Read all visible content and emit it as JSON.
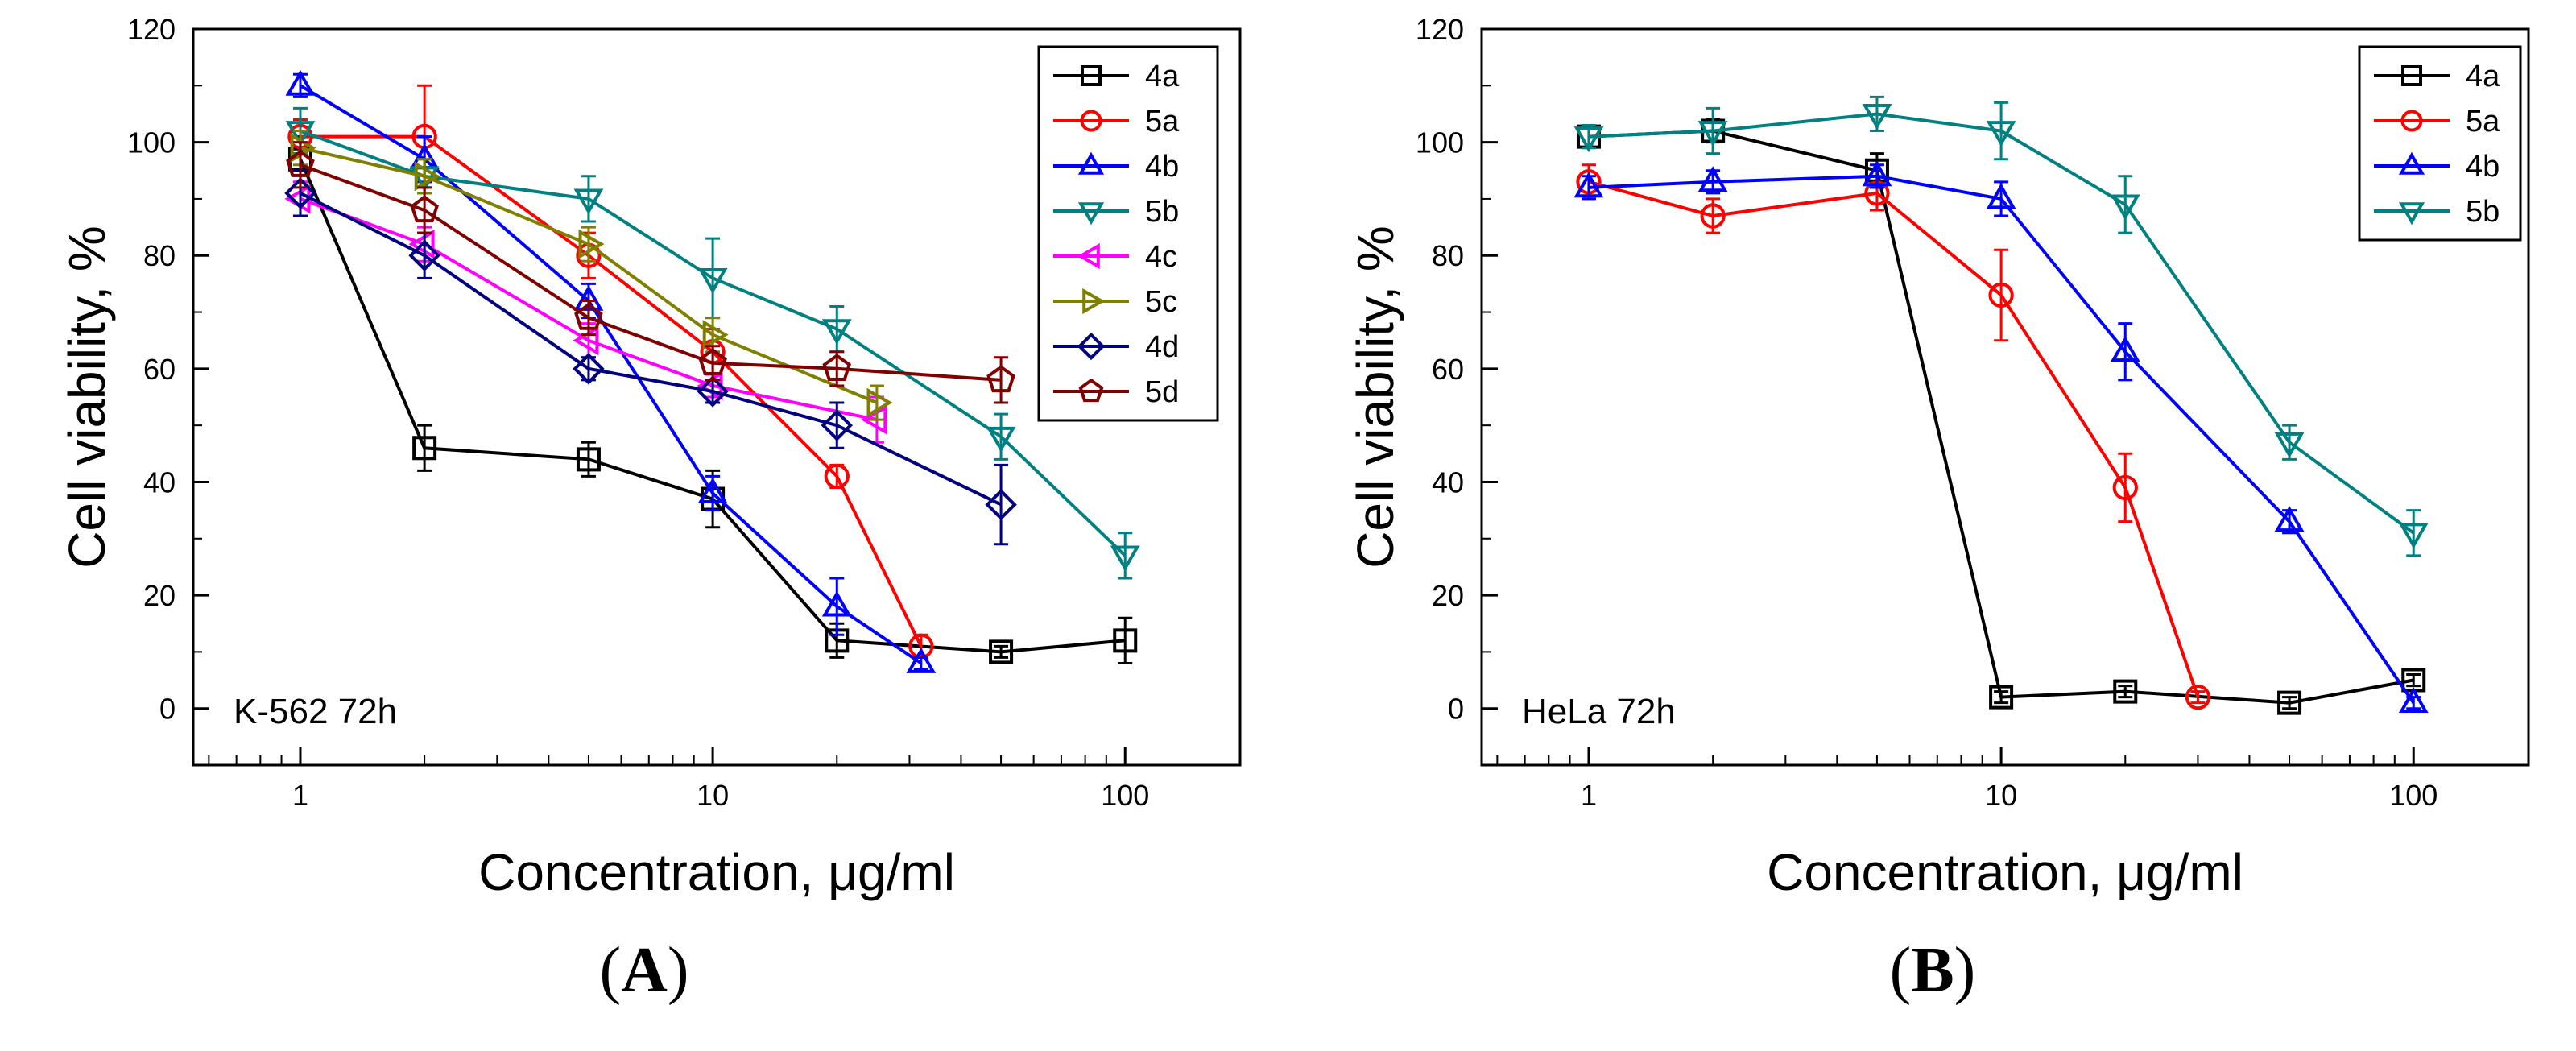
{
  "chart_data": [
    {
      "panel": "(A)",
      "panel_letter": "A",
      "type": "line",
      "xscale": "log",
      "xlim": [
        0.55,
        190
      ],
      "ylim": [
        -10,
        120
      ],
      "xticks": [
        1,
        10,
        100
      ],
      "yticks": [
        0,
        20,
        40,
        60,
        80,
        100,
        120
      ],
      "xlabel": "Concentration, μg/ml",
      "ylabel": "Cell viability, %",
      "annotation": "K-562 72h",
      "legend_position": "top-right",
      "series": [
        {
          "name": "4a",
          "color": "#000000",
          "marker": "square",
          "x": [
            1,
            2,
            5,
            10,
            20,
            50,
            100
          ],
          "y": [
            97,
            46,
            44,
            37,
            12,
            10,
            12
          ],
          "err": [
            4,
            4,
            3,
            5,
            3,
            1,
            4
          ]
        },
        {
          "name": "5a",
          "color": "#ff0000",
          "marker": "circle",
          "x": [
            1,
            2,
            5,
            10,
            20,
            32
          ],
          "y": [
            101,
            101,
            80,
            63,
            41,
            11
          ],
          "err": [
            3,
            9,
            4,
            4,
            2,
            2
          ]
        },
        {
          "name": "4b",
          "color": "#0000ff",
          "marker": "triangle-up",
          "x": [
            1,
            2,
            5,
            10,
            20,
            32
          ],
          "y": [
            110,
            97,
            72,
            38,
            18,
            8
          ],
          "err": [
            2,
            4,
            3,
            3,
            5,
            1
          ]
        },
        {
          "name": "5b",
          "color": "#008080",
          "marker": "triangle-down",
          "x": [
            1,
            2,
            5,
            10,
            20,
            50,
            100
          ],
          "y": [
            102,
            94,
            90,
            76,
            67,
            48,
            27
          ],
          "err": [
            4,
            3,
            4,
            7,
            4,
            4,
            4
          ]
        },
        {
          "name": "4c",
          "color": "#ff00ff",
          "marker": "triangle-left",
          "x": [
            1,
            2,
            5,
            10,
            25
          ],
          "y": [
            90,
            82,
            65,
            57,
            51
          ],
          "err": [
            3,
            3,
            3,
            2,
            4
          ]
        },
        {
          "name": "5c",
          "color": "#808000",
          "marker": "triangle-right",
          "x": [
            1,
            2,
            5,
            10,
            25
          ],
          "y": [
            99,
            94,
            82,
            66,
            54
          ],
          "err": [
            3,
            3,
            3,
            3,
            3
          ]
        },
        {
          "name": "4d",
          "color": "#000080",
          "marker": "diamond",
          "x": [
            1,
            2,
            5,
            10,
            20,
            50
          ],
          "y": [
            91,
            80,
            60,
            56,
            50,
            36
          ],
          "err": [
            4,
            4,
            2,
            2,
            4,
            7
          ]
        },
        {
          "name": "5d",
          "color": "#800000",
          "marker": "pentagon",
          "x": [
            1,
            2,
            5,
            10,
            20,
            50
          ],
          "y": [
            96,
            88,
            69,
            61,
            60,
            58
          ],
          "err": [
            4,
            4,
            3,
            3,
            3,
            4
          ]
        }
      ]
    },
    {
      "panel": "(B)",
      "panel_letter": "B",
      "type": "line",
      "xscale": "log",
      "xlim": [
        0.55,
        190
      ],
      "ylim": [
        -10,
        120
      ],
      "xticks": [
        1,
        10,
        100
      ],
      "yticks": [
        0,
        20,
        40,
        60,
        80,
        100,
        120
      ],
      "xlabel": "Concentration, μg/ml",
      "ylabel": "Cell viability, %",
      "annotation": "HeLa 72h",
      "legend_position": "top-right",
      "series": [
        {
          "name": "4a",
          "color": "#000000",
          "marker": "square",
          "x": [
            1,
            2,
            5,
            10,
            20,
            50,
            100
          ],
          "y": [
            101,
            102,
            95,
            2,
            3,
            1,
            5
          ],
          "err": [
            2,
            2,
            3,
            1,
            1,
            1,
            1
          ]
        },
        {
          "name": "5a",
          "color": "#ff0000",
          "marker": "circle",
          "x": [
            1,
            2,
            5,
            10,
            20,
            30
          ],
          "y": [
            93,
            87,
            91,
            73,
            39,
            2
          ],
          "err": [
            3,
            3,
            3,
            8,
            6,
            1
          ]
        },
        {
          "name": "4b",
          "color": "#0000ff",
          "marker": "triangle-up",
          "x": [
            1,
            2,
            5,
            10,
            20,
            50,
            100
          ],
          "y": [
            92,
            93,
            94,
            90,
            63,
            33,
            1
          ],
          "err": [
            2,
            2,
            2,
            3,
            5,
            2,
            1
          ]
        },
        {
          "name": "5b",
          "color": "#008080",
          "marker": "triangle-down",
          "x": [
            1,
            2,
            5,
            10,
            20,
            50,
            100
          ],
          "y": [
            101,
            102,
            105,
            102,
            89,
            47,
            31
          ],
          "err": [
            2,
            4,
            3,
            5,
            5,
            3,
            4
          ]
        }
      ]
    }
  ]
}
